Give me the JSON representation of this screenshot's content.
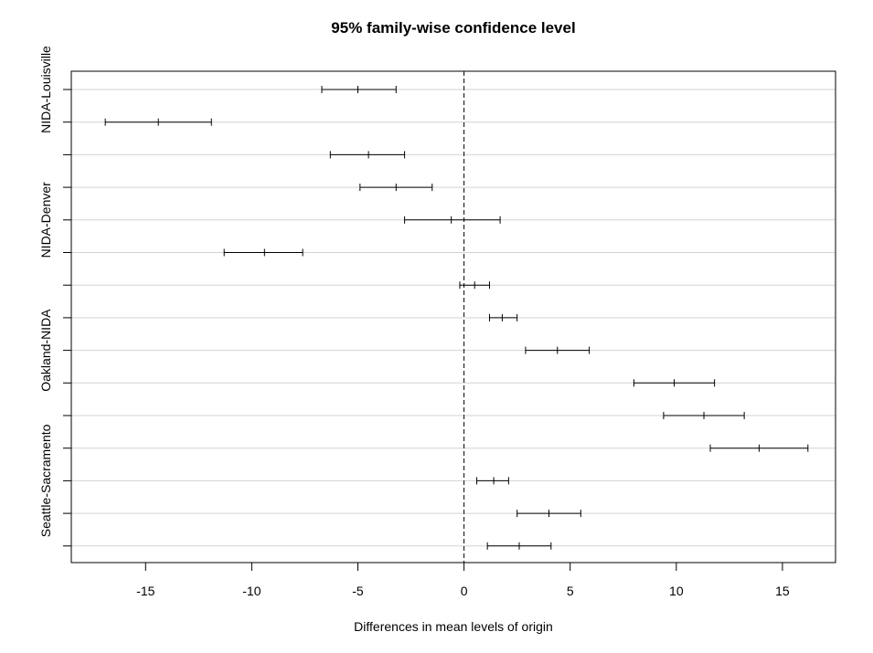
{
  "chart_data": {
    "type": "errorbar",
    "title": "95% family-wise confidence level",
    "xlabel": "Differences in mean levels of origin",
    "ylabel": "",
    "xlim": [
      -18.5,
      17.5
    ],
    "xticks": [
      -15,
      -10,
      -5,
      0,
      5,
      10,
      15
    ],
    "reference_line": 0,
    "grid": "horizontal",
    "comparisons": [
      {
        "label": "NIDA-Louisville",
        "lower": -6.7,
        "mean": -5.0,
        "upper": -3.2
      },
      {
        "label": "",
        "lower": -16.9,
        "mean": -14.4,
        "upper": -11.9
      },
      {
        "label": "",
        "lower": -6.3,
        "mean": -4.5,
        "upper": -2.8
      },
      {
        "label": "",
        "lower": -4.9,
        "mean": -3.2,
        "upper": -1.5
      },
      {
        "label": "NIDA-Denver",
        "lower": -2.8,
        "mean": -0.6,
        "upper": 1.7
      },
      {
        "label": "",
        "lower": -11.3,
        "mean": -9.4,
        "upper": -7.6
      },
      {
        "label": "",
        "lower": -0.2,
        "mean": 0.5,
        "upper": 1.2
      },
      {
        "label": "",
        "lower": 1.2,
        "mean": 1.8,
        "upper": 2.5
      },
      {
        "label": "Oakland-NIDA",
        "lower": 2.9,
        "mean": 4.4,
        "upper": 5.9
      },
      {
        "label": "",
        "lower": 8.0,
        "mean": 9.9,
        "upper": 11.8
      },
      {
        "label": "",
        "lower": 9.4,
        "mean": 11.3,
        "upper": 13.2
      },
      {
        "label": "",
        "lower": 11.6,
        "mean": 13.9,
        "upper": 16.2
      },
      {
        "label": "Seattle-Sacramento",
        "lower": 0.6,
        "mean": 1.4,
        "upper": 2.1
      },
      {
        "label": "",
        "lower": 2.5,
        "mean": 4.0,
        "upper": 5.5
      },
      {
        "label": "",
        "lower": 1.1,
        "mean": 2.6,
        "upper": 4.1
      }
    ]
  }
}
